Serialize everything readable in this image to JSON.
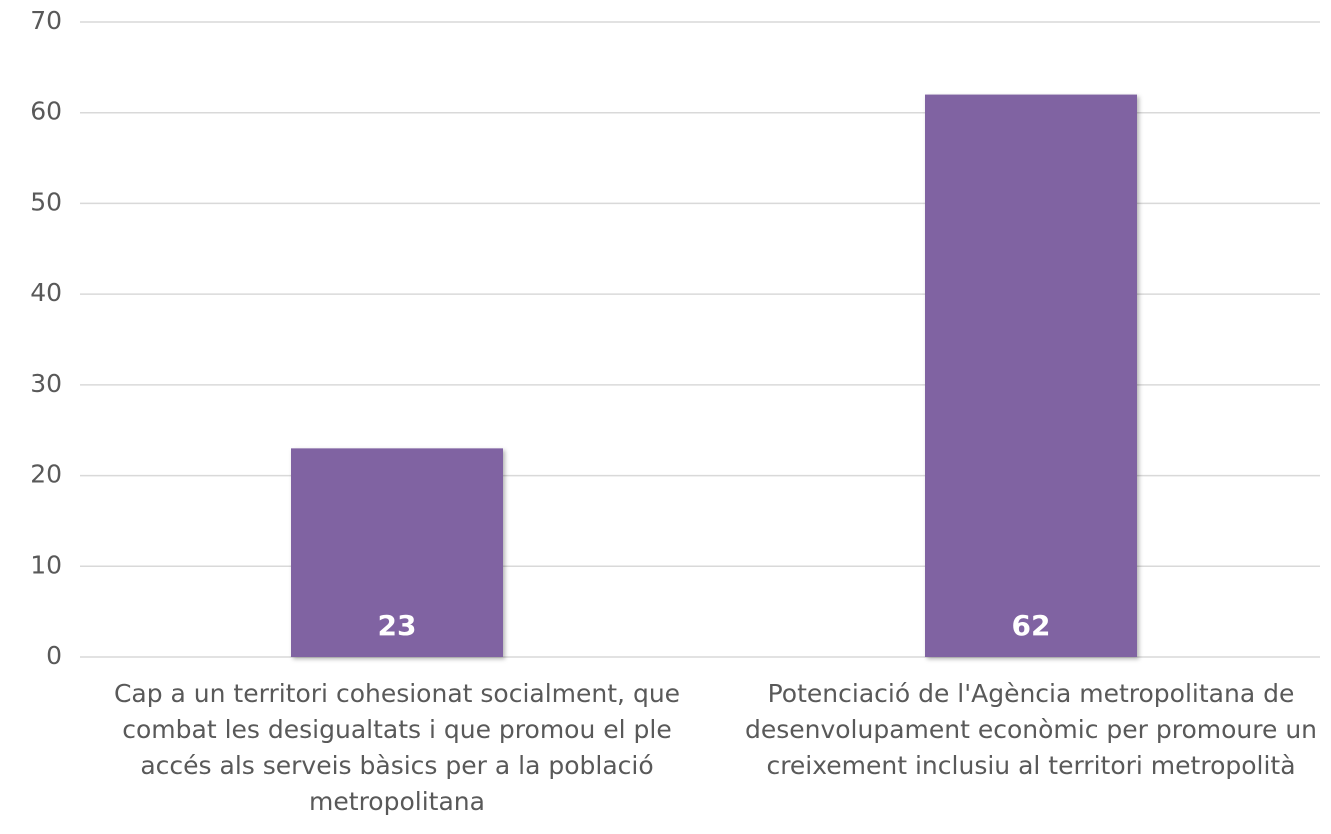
{
  "chart_data": {
    "type": "bar",
    "categories": [
      "Cap a un territori cohesionat socialment, que combat les desigualtats i que promou el ple accés als serveis bàsics per a la població metropolitana",
      "Potenciació de l'Agència metropolitana de desenvolupament econòmic per promoure un creixement inclusiu al territori metropolità"
    ],
    "values": [
      23,
      62
    ],
    "color": "#8064a2",
    "ylim": [
      0,
      70
    ],
    "yticks": [
      0,
      10,
      20,
      30,
      40,
      50,
      60,
      70
    ],
    "grid": true
  }
}
